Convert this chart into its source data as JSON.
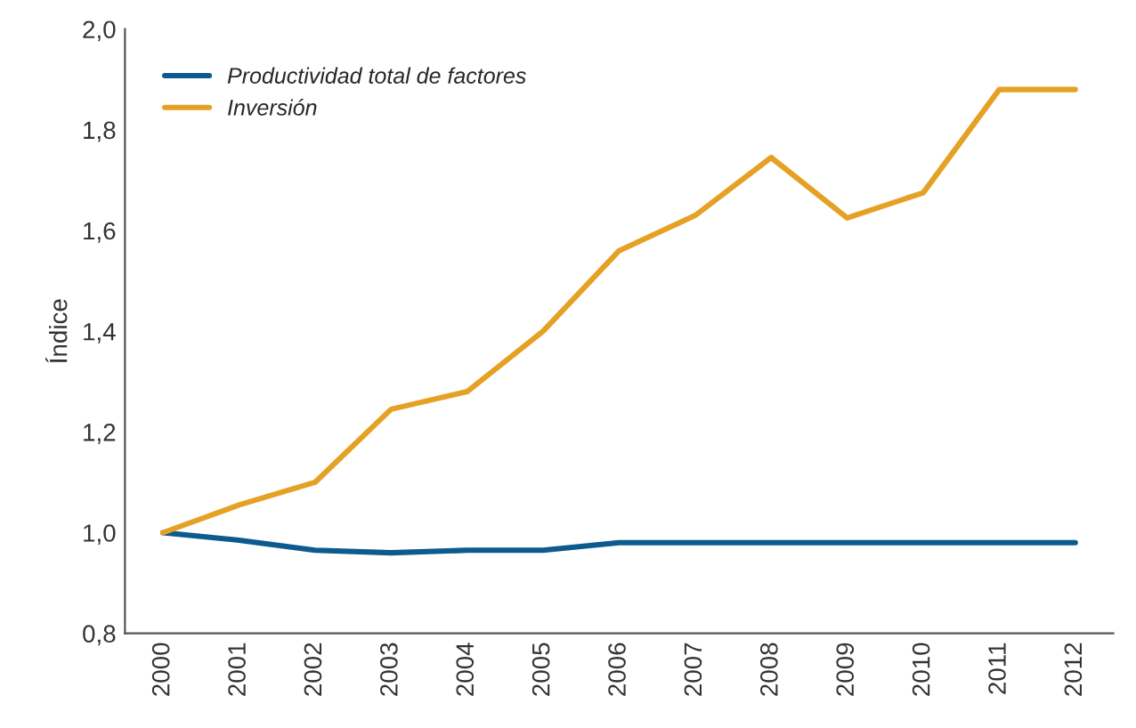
{
  "chart_data": {
    "type": "line",
    "ylabel": "Índice",
    "categories": [
      "2000",
      "2001",
      "2002",
      "2003",
      "2004",
      "2005",
      "2006",
      "2007",
      "2008",
      "2009",
      "2010",
      "2011",
      "2012"
    ],
    "series": [
      {
        "name": "Productividad total de factores",
        "color": "#0d5a8f",
        "values": [
          1.0,
          0.985,
          0.965,
          0.96,
          0.965,
          0.965,
          0.98,
          0.98,
          0.98,
          0.98,
          0.98,
          0.98,
          0.98
        ]
      },
      {
        "name": "Inversión",
        "color": "#e5a124",
        "values": [
          1.0,
          1.055,
          1.1,
          1.245,
          1.28,
          1.4,
          1.56,
          1.63,
          1.745,
          1.625,
          1.675,
          1.88,
          1.88
        ]
      }
    ],
    "ylim": [
      0.8,
      2.0
    ],
    "yticks": [
      {
        "value": 0.8,
        "label": "0,8"
      },
      {
        "value": 1.0,
        "label": "1,0"
      },
      {
        "value": 1.2,
        "label": "1,2"
      },
      {
        "value": 1.4,
        "label": "1,4"
      },
      {
        "value": 1.6,
        "label": "1,6"
      },
      {
        "value": 1.8,
        "label": "1,8"
      },
      {
        "value": 2.0,
        "label": "2,0"
      }
    ],
    "grid": false,
    "legend": "top left",
    "marker": "none",
    "line_style": "solid"
  }
}
